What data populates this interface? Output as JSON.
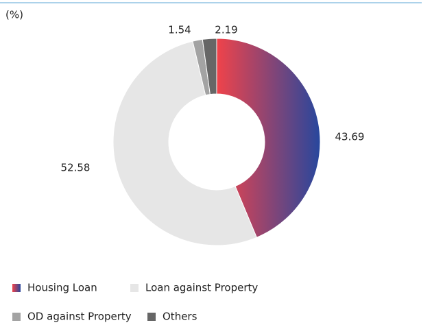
{
  "chart_data": {
    "type": "donut",
    "title": "(%)",
    "categories": [
      "Housing Loan",
      "Loan against Property",
      "OD against Property",
      "Others"
    ],
    "values": [
      43.69,
      52.58,
      1.54,
      2.19
    ],
    "colors": [
      [
        "#f0434a",
        "#27479d"
      ],
      "#e6e6e6",
      "#a3a3a3",
      "#666666"
    ]
  }
}
